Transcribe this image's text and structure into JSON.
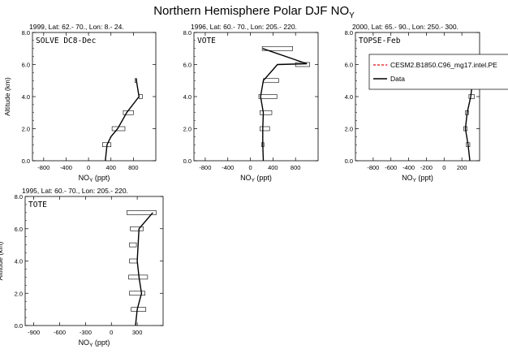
{
  "title": {
    "main": "Northern Hemisphere Polar DJF NO",
    "sub": "Y"
  },
  "legend": {
    "model_label": "CESM2.B1850.C96_mg17.intel.PE",
    "data_label": "Data",
    "model_color": "#ff0000",
    "data_color": "#000000"
  },
  "chart_data": [
    {
      "type": "line",
      "header": "1999, Lat: 62.- 70., Lon: 8.- 24.",
      "campaign": "SOLVE DC8-Dec",
      "xlabel": "NO",
      "xlabel_sub": "Y",
      "xlabel_unit": " (ppt)",
      "ylabel": "Altitude (km)",
      "xlim": [
        -1000,
        1200
      ],
      "ylim": [
        0,
        8
      ],
      "xticks": [
        "-800",
        "-400",
        "0",
        "400",
        "800"
      ],
      "xtick_values": [
        -800,
        -400,
        0,
        400,
        800
      ],
      "yticks": [
        "0.0",
        "2.0",
        "4.0",
        "6.0",
        "8.0"
      ],
      "ytick_values": [
        0,
        2,
        4,
        6,
        8
      ],
      "data_line": [
        [
          300,
          0
        ],
        [
          330,
          1
        ],
        [
          400,
          1.5
        ],
        [
          520,
          2
        ],
        [
          680,
          3
        ],
        [
          900,
          4
        ],
        [
          850,
          5.1
        ]
      ],
      "boxes": [
        {
          "alt": 1,
          "lo": 250,
          "hi": 400
        },
        {
          "alt": 2,
          "lo": 420,
          "hi": 650
        },
        {
          "alt": 3,
          "lo": 620,
          "hi": 800
        },
        {
          "alt": 4,
          "lo": 900,
          "hi": 960
        },
        {
          "alt": 5,
          "lo": 830,
          "hi": 860
        }
      ]
    },
    {
      "type": "line",
      "header": "1996, Lat: 60.- 70., Lon: 205.- 220.",
      "campaign": "VOTE",
      "xlabel": "NO",
      "xlabel_sub": "Y",
      "xlabel_unit": " (ppt)",
      "ylabel": "",
      "xlim": [
        -1000,
        1200
      ],
      "ylim": [
        0,
        8
      ],
      "xticks": [
        "-800",
        "-400",
        "0",
        "400",
        "800"
      ],
      "xtick_values": [
        -800,
        -400,
        0,
        400,
        800
      ],
      "yticks": [
        "0.0",
        "2.0",
        "4.0",
        "6.0",
        "8.0"
      ],
      "ytick_values": [
        0,
        2,
        4,
        6,
        8
      ],
      "data_line": [
        [
          230,
          0
        ],
        [
          220,
          1
        ],
        [
          220,
          2
        ],
        [
          230,
          3
        ],
        [
          180,
          4
        ],
        [
          230,
          5
        ],
        [
          480,
          6
        ],
        [
          1000,
          6.05
        ],
        [
          220,
          7
        ]
      ],
      "boxes": [
        {
          "alt": 1,
          "lo": 200,
          "hi": 240
        },
        {
          "alt": 2,
          "lo": 170,
          "hi": 340
        },
        {
          "alt": 3,
          "lo": 170,
          "hi": 380
        },
        {
          "alt": 4,
          "lo": 150,
          "hi": 470
        },
        {
          "alt": 5,
          "lo": 230,
          "hi": 500
        },
        {
          "alt": 6,
          "lo": 800,
          "hi": 1050
        },
        {
          "alt": 7,
          "lo": 210,
          "hi": 750
        }
      ]
    },
    {
      "type": "line",
      "header": "2000, Lat: 65.- 90., Lon: 250.- 300.",
      "campaign": "TOPSE-Feb",
      "xlabel": "NO",
      "xlabel_sub": "Y",
      "xlabel_unit": " (ppt)",
      "ylabel": "",
      "xlim": [
        -1000,
        400
      ],
      "ylim": [
        0,
        8
      ],
      "xticks": [
        "-800",
        "-600",
        "-400",
        "-200",
        "0",
        "200"
      ],
      "xtick_values": [
        -800,
        -600,
        -400,
        -200,
        0,
        200
      ],
      "yticks": [
        "0.0",
        "2.0",
        "4.0",
        "6.0",
        "8.0"
      ],
      "ytick_values": [
        0,
        2,
        4,
        6,
        8
      ],
      "data_line": [
        [
          290,
          0
        ],
        [
          270,
          1
        ],
        [
          240,
          2
        ],
        [
          260,
          3
        ],
        [
          300,
          4
        ],
        [
          320,
          5
        ],
        [
          330,
          6
        ]
      ],
      "boxes": [
        {
          "alt": 1,
          "lo": 250,
          "hi": 290
        },
        {
          "alt": 2,
          "lo": 220,
          "hi": 260
        },
        {
          "alt": 3,
          "lo": 240,
          "hi": 275
        },
        {
          "alt": 4,
          "lo": 280,
          "hi": 340
        },
        {
          "alt": 5,
          "lo": 290,
          "hi": 360
        }
      ]
    },
    {
      "type": "line",
      "header": "1995, Lat: 60.- 70., Lon: 205.- 220.",
      "campaign": "TOTE",
      "xlabel": "NO",
      "xlabel_sub": "Y",
      "xlabel_unit": " (ppt)",
      "ylabel": "Altitude (km)",
      "xlim": [
        -1000,
        600
      ],
      "ylim": [
        0,
        8
      ],
      "xticks": [
        "-900",
        "-600",
        "-300",
        "0",
        "300"
      ],
      "xtick_values": [
        -900,
        -600,
        -300,
        0,
        300
      ],
      "yticks": [
        "0.0",
        "2.0",
        "4.0",
        "6.0",
        "8.0"
      ],
      "ytick_values": [
        0,
        2,
        4,
        6,
        8
      ],
      "data_line": [
        [
          280,
          0
        ],
        [
          300,
          1
        ],
        [
          350,
          2
        ],
        [
          320,
          3
        ],
        [
          300,
          4
        ],
        [
          310,
          5
        ],
        [
          320,
          6
        ],
        [
          480,
          7
        ]
      ],
      "boxes": [
        {
          "alt": 1,
          "lo": 230,
          "hi": 400
        },
        {
          "alt": 2,
          "lo": 210,
          "hi": 390
        },
        {
          "alt": 3,
          "lo": 200,
          "hi": 420
        },
        {
          "alt": 4,
          "lo": 210,
          "hi": 300
        },
        {
          "alt": 5,
          "lo": 210,
          "hi": 290
        },
        {
          "alt": 6,
          "lo": 220,
          "hi": 370
        },
        {
          "alt": 7,
          "lo": 180,
          "hi": 520
        }
      ]
    }
  ]
}
